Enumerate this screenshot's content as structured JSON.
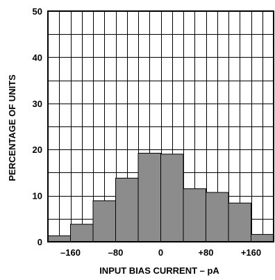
{
  "chart_data": {
    "type": "bar",
    "xlabel": "INPUT BIAS CURRENT – pA",
    "ylabel": "PERCENTAGE OF UNITS",
    "ylim": [
      0,
      50
    ],
    "xlim": [
      -200,
      200
    ],
    "bin_width": 40,
    "grid": true,
    "bar_color": "#8c8c8c",
    "bins": [
      {
        "from": -200,
        "to": -160,
        "value": 1.3
      },
      {
        "from": -160,
        "to": -120,
        "value": 3.8
      },
      {
        "from": -120,
        "to": -80,
        "value": 8.9
      },
      {
        "from": -80,
        "to": -40,
        "value": 13.8
      },
      {
        "from": -40,
        "to": 0,
        "value": 19.2
      },
      {
        "from": 0,
        "to": 40,
        "value": 19.0
      },
      {
        "from": 40,
        "to": 80,
        "value": 11.5
      },
      {
        "from": 80,
        "to": 120,
        "value": 10.7
      },
      {
        "from": 120,
        "to": 160,
        "value": 8.4
      },
      {
        "from": 160,
        "to": 200,
        "value": 1.6
      }
    ],
    "y_ticks": [
      {
        "value": 0,
        "label": "0"
      },
      {
        "value": 10,
        "label": "10"
      },
      {
        "value": 20,
        "label": "20"
      },
      {
        "value": 30,
        "label": "30"
      },
      {
        "value": 40,
        "label": "40"
      },
      {
        "value": 50,
        "label": "50"
      }
    ],
    "x_ticks": [
      {
        "value": -160,
        "label": "–160"
      },
      {
        "value": -80,
        "label": "–80"
      },
      {
        "value": 0,
        "label": "0"
      },
      {
        "value": 80,
        "label": "+80"
      },
      {
        "value": 160,
        "label": "+160"
      }
    ]
  }
}
